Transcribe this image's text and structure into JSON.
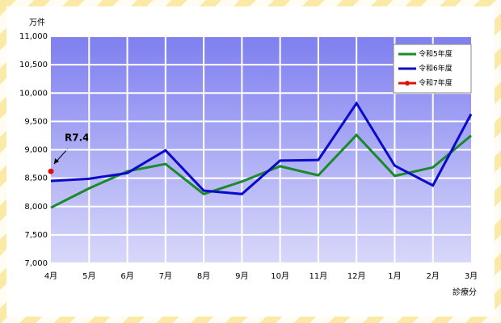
{
  "chart_data": {
    "type": "line",
    "y_unit_label": "万件",
    "x_label": "診療分",
    "annotation": "R7.4",
    "categories": [
      "4月",
      "5月",
      "6月",
      "7月",
      "8月",
      "9月",
      "10月",
      "11月",
      "12月",
      "1月",
      "2月",
      "3月"
    ],
    "series": [
      {
        "name": "令和5年度",
        "color": "#1a8a2a",
        "values": [
          7980,
          8320,
          8620,
          8750,
          8220,
          8440,
          8710,
          8550,
          9260,
          8540,
          8690,
          9250
        ]
      },
      {
        "name": "令和6年度",
        "color": "#0a0ac8",
        "values": [
          8450,
          8490,
          8590,
          8990,
          8280,
          8220,
          8810,
          8820,
          9820,
          8720,
          8370,
          9630
        ]
      },
      {
        "name": "令和7年度",
        "color": "#e01010",
        "values": [
          8620,
          null,
          null,
          null,
          null,
          null,
          null,
          null,
          null,
          null,
          null,
          null
        ]
      }
    ],
    "ylim": [
      7000,
      11000
    ],
    "yticks": [
      {
        "value": 7000,
        "label": "7,000"
      },
      {
        "value": 7500,
        "label": "7,500"
      },
      {
        "value": 8000,
        "label": "8,000"
      },
      {
        "value": 8500,
        "label": "8,500"
      },
      {
        "value": 9000,
        "label": "9,000"
      },
      {
        "value": 9500,
        "label": "9,500"
      },
      {
        "value": 10000,
        "label": "10,000"
      },
      {
        "value": 10500,
        "label": "10,500"
      },
      {
        "value": 11000,
        "label": "11,000"
      }
    ],
    "grid": true,
    "legend": "top-right"
  }
}
